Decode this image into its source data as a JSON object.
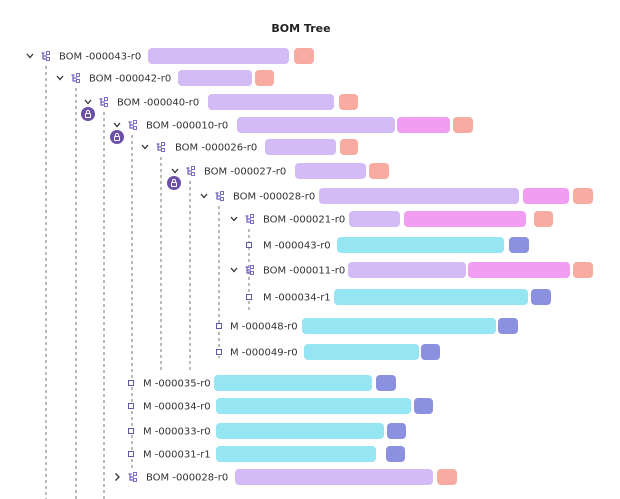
{
  "title": "BOM Tree",
  "nodes": [
    {
      "label": "BOM -000043-r0"
    },
    {
      "label": "BOM -000042-r0"
    },
    {
      "label": "BOM -000040-r0"
    },
    {
      "label": "BOM -000010-r0"
    },
    {
      "label": "BOM -000026-r0"
    },
    {
      "label": "BOM -000027-r0"
    },
    {
      "label": "BOM -000028-r0"
    },
    {
      "label": "BOM -000021-r0"
    },
    {
      "label": "M -000043-r0"
    },
    {
      "label": "BOM -000011-r0"
    },
    {
      "label": "M -000034-r1"
    },
    {
      "label": "M -000048-r0"
    },
    {
      "label": "M -000049-r0"
    },
    {
      "label": "M -000035-r0"
    },
    {
      "label": "M -000034-r0"
    },
    {
      "label": "M -000033-r0"
    },
    {
      "label": "M -000031-r1"
    },
    {
      "label": "BOM -000028-r0"
    }
  ]
}
